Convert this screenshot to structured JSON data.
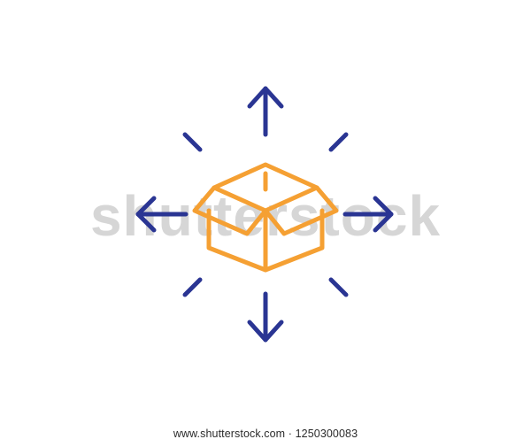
{
  "footer": {
    "url_text": "www.shutterstock.com · 1250300083"
  },
  "watermark": {
    "text": "shutterstock"
  },
  "icon": {
    "name": "box-distribution-arrows-icon",
    "colors": {
      "box": "#f5a033",
      "arrows": "#2a3593",
      "watermark": "#c9c9c9",
      "background": "#ffffff"
    }
  }
}
